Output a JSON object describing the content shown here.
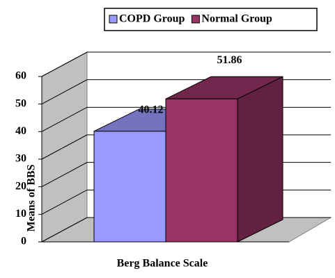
{
  "chart_data": {
    "type": "bar3d",
    "x_label": "Berg Balance Scale",
    "y_label": "Means of BBS",
    "series": [
      {
        "name": "COPD Group",
        "color": "#9999ff",
        "values": [
          40.12
        ]
      },
      {
        "name": "Normal Group",
        "color": "#993366",
        "values": [
          51.86
        ]
      }
    ],
    "ylim": [
      0,
      60
    ],
    "yticks": [
      0,
      10,
      20,
      30,
      40,
      50,
      60
    ],
    "grid": true,
    "legend": "top"
  }
}
